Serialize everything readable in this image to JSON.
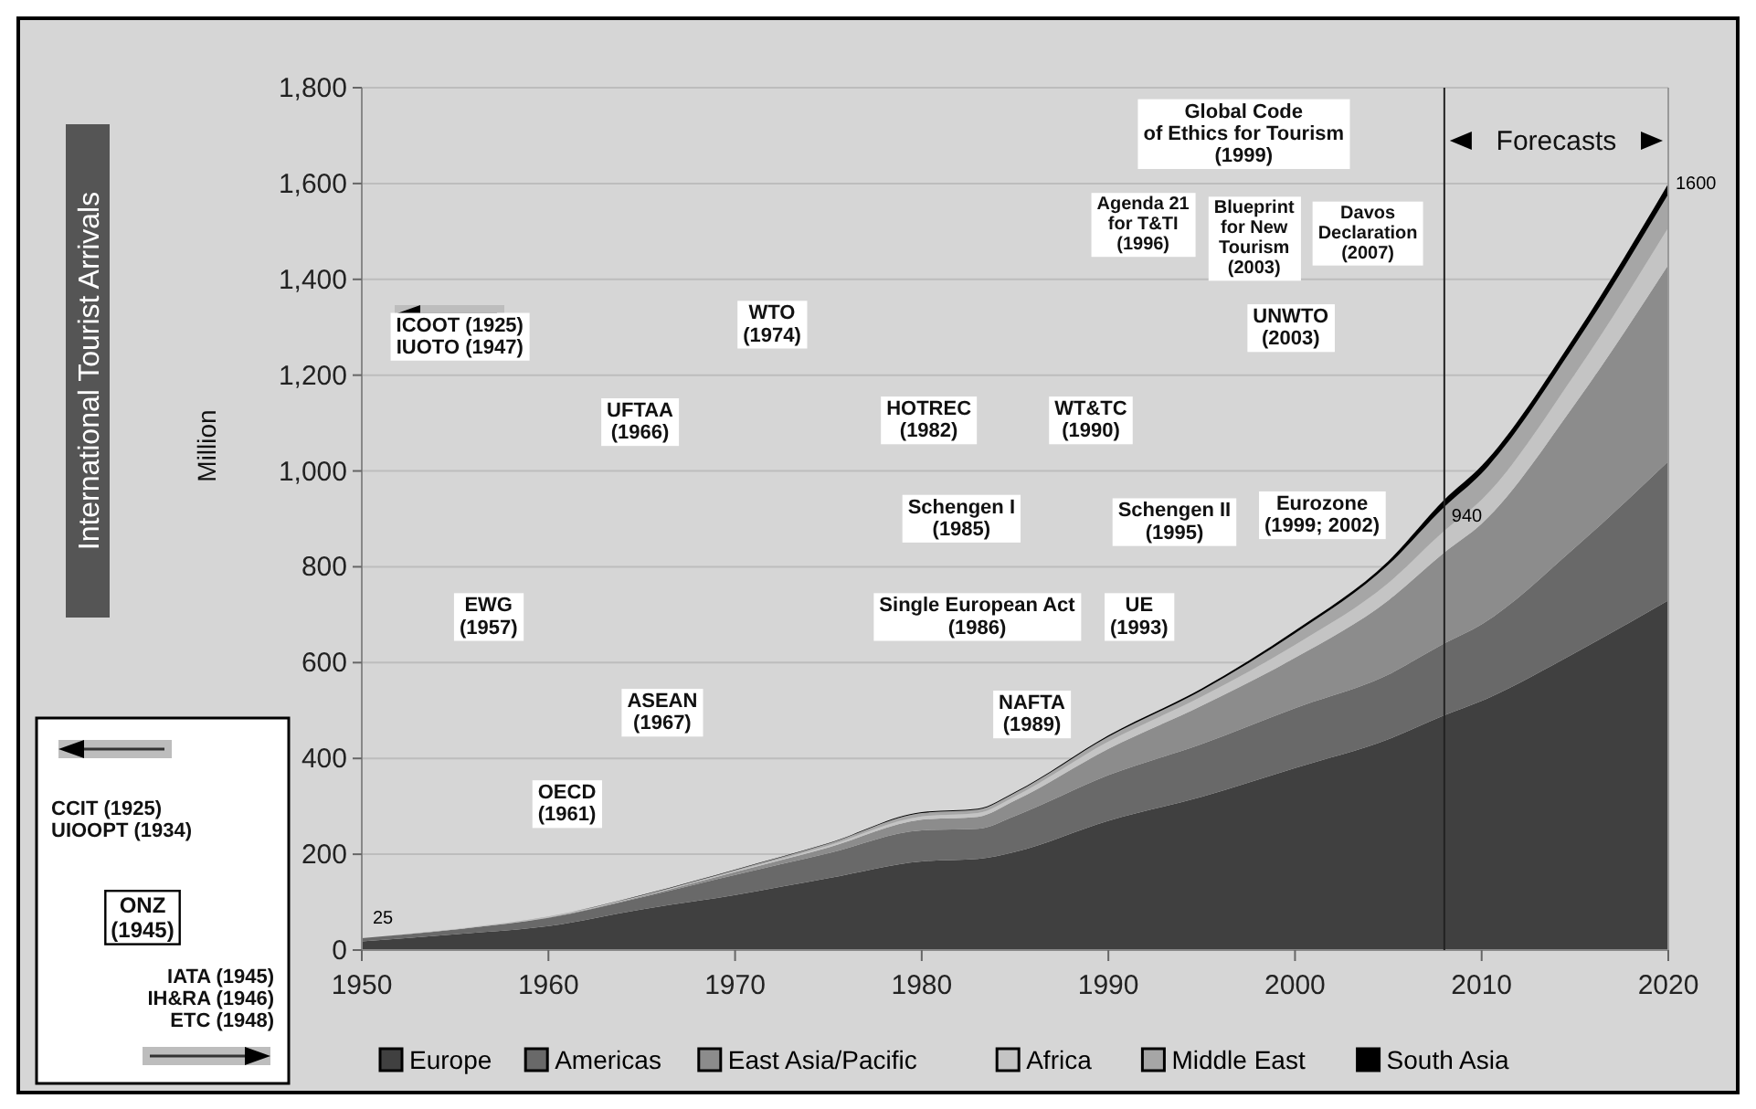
{
  "chart_data": {
    "type": "area",
    "stacked": true,
    "title": "International Tourist Arrivals",
    "ylabel": "Million",
    "x": [
      1950,
      1955,
      1960,
      1965,
      1970,
      1975,
      1980,
      1983,
      1985,
      1990,
      1995,
      2000,
      2005,
      2008,
      2010,
      2015,
      2020
    ],
    "series": [
      {
        "name": "Europe",
        "color": "#404040",
        "values": [
          18,
          33,
          50,
          85,
          115,
          150,
          185,
          190,
          205,
          270,
          320,
          380,
          440,
          490,
          520,
          620,
          730
        ]
      },
      {
        "name": "Americas",
        "color": "#696969",
        "values": [
          7,
          10,
          17,
          25,
          42,
          52,
          65,
          63,
          75,
          95,
          110,
          125,
          135,
          150,
          160,
          220,
          290
        ]
      },
      {
        "name": "East Asia/Pacific",
        "color": "#8c8c8c",
        "values": [
          0,
          0,
          1,
          2,
          6,
          12,
          22,
          25,
          32,
          55,
          80,
          105,
          155,
          190,
          210,
          300,
          410
        ]
      },
      {
        "name": "Africa",
        "color": "#c4c4c4",
        "values": [
          0,
          1,
          1,
          1,
          2,
          4,
          7,
          8,
          9,
          15,
          19,
          27,
          36,
          45,
          50,
          62,
          78
        ]
      },
      {
        "name": "Middle East",
        "color": "#a6a6a6",
        "values": [
          0,
          0,
          1,
          1,
          2,
          4,
          7,
          7,
          7,
          10,
          13,
          24,
          38,
          50,
          55,
          62,
          70
        ]
      },
      {
        "name": "South Asia",
        "color": "#000000",
        "values": [
          0,
          0,
          0,
          1,
          1,
          1,
          2,
          2,
          2,
          3,
          4,
          6,
          8,
          15,
          16,
          18,
          22
        ]
      }
    ],
    "xlim": [
      1950,
      2020
    ],
    "xticks": [
      1950,
      1960,
      1970,
      1980,
      1990,
      2000,
      2010,
      2020
    ],
    "ylim": [
      0,
      1800
    ],
    "yticks": [
      0,
      200,
      400,
      600,
      800,
      {
        "value": 1000,
        "label": "1,000"
      },
      {
        "value": 1200,
        "label": "1,200"
      },
      {
        "value": 1400,
        "label": "1,400"
      },
      {
        "value": 1600,
        "label": "1,600"
      },
      {
        "value": 1800,
        "label": "1,800"
      }
    ],
    "grid": "y",
    "legend": "bottom",
    "ref_lines": [
      {
        "axis": "x",
        "value": 2008,
        "label": "Forecasts"
      }
    ],
    "annotations": [
      "ICOOT (1925)\nIUOTO (1947)",
      "WTO\n(1974)",
      "UFTAA\n(1966)",
      "HOTREC\n(1982)",
      "WT&TC\n(1990)",
      "Global Code\nof Ethics for Tourism\n(1999)",
      "Agenda 21\nfor T&TI\n(1996)",
      "Blueprint\nfor New\nTourism\n(2003)",
      "Davos\nDeclaration\n(2007)",
      "UNWTO\n(2003)",
      "Schengen I\n(1985)",
      "Schengen II\n(1995)",
      "Eurozone\n(1999; 2002)",
      "Single European Act\n(1986)",
      "UE\n(1993)",
      "NAFTA\n(1989)",
      "EWG\n(1957)",
      "ASEAN\n(1967)",
      "OECD\n(1961)",
      "CCIT (1925)\nUIOOPT (1934)",
      "ONZ\n(1945)",
      "IATA (1945)\nIH&RA (1946)\nETC (1948)",
      {
        "text": "25",
        "x": 1950,
        "y": 25
      },
      {
        "text": "940",
        "x": 2008,
        "y": 940
      },
      {
        "text": "1600",
        "x": 2020,
        "y": 1600
      }
    ]
  }
}
